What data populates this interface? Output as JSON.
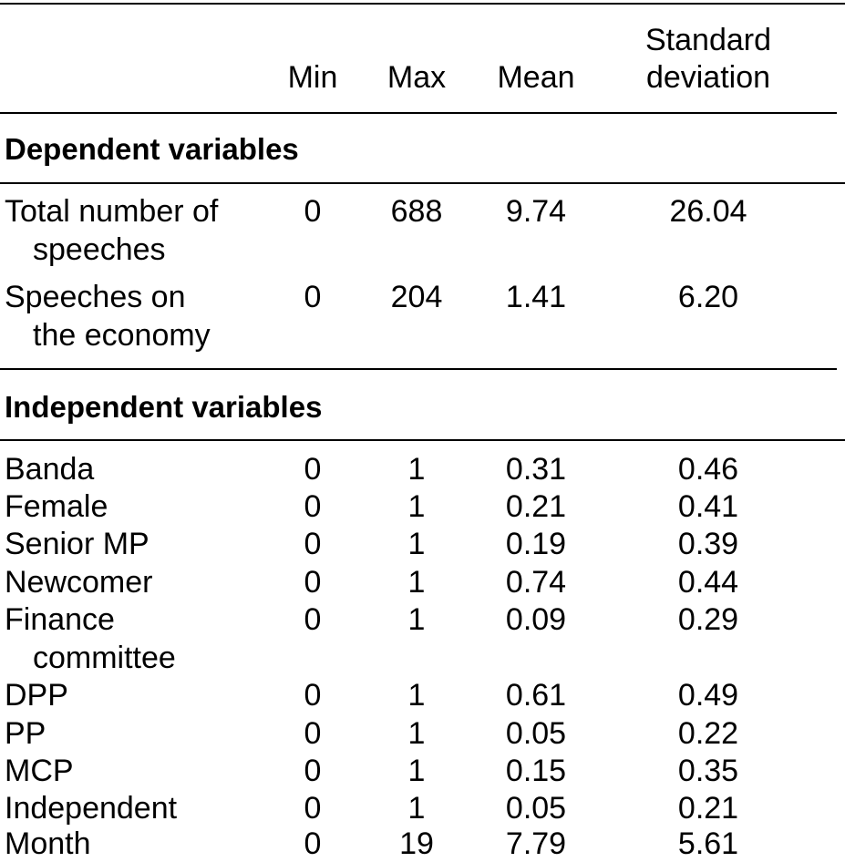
{
  "header": {
    "min": "Min",
    "max": "Max",
    "mean": "Mean",
    "sd_line1": "Standard",
    "sd_line2": "deviation"
  },
  "sections": {
    "dependent": "Dependent variables",
    "independent": "Independent variables"
  },
  "dependent_rows": [
    {
      "label1": "Total number of",
      "label2": "speeches",
      "min": "0",
      "max": "688",
      "mean": "9.74",
      "sd": "26.04"
    },
    {
      "label1": "Speeches on",
      "label2": "the economy",
      "min": "0",
      "max": "204",
      "mean": "1.41",
      "sd": "6.20"
    }
  ],
  "independent_rows": [
    {
      "label": "Banda",
      "min": "0",
      "max": "1",
      "mean": "0.31",
      "sd": "0.46"
    },
    {
      "label": "Female",
      "min": "0",
      "max": "1",
      "mean": "0.21",
      "sd": "0.41"
    },
    {
      "label": "Senior MP",
      "min": "0",
      "max": "1",
      "mean": "0.19",
      "sd": "0.39"
    },
    {
      "label": "Newcomer",
      "min": "0",
      "max": "1",
      "mean": "0.74",
      "sd": "0.44"
    },
    {
      "label": "Finance",
      "label2": "committee",
      "min": "0",
      "max": "1",
      "mean": "0.09",
      "sd": "0.29"
    },
    {
      "label": "DPP",
      "min": "0",
      "max": "1",
      "mean": "0.61",
      "sd": "0.49"
    },
    {
      "label": "PP",
      "min": "0",
      "max": "1",
      "mean": "0.05",
      "sd": "0.22"
    },
    {
      "label": "MCP",
      "min": "0",
      "max": "1",
      "mean": "0.15",
      "sd": "0.35"
    },
    {
      "label": "Independent",
      "min": "0",
      "max": "1",
      "mean": "0.05",
      "sd": "0.21"
    },
    {
      "label": "Month",
      "min": "0",
      "max": "19",
      "mean": "7.79",
      "sd": "5.61"
    }
  ]
}
